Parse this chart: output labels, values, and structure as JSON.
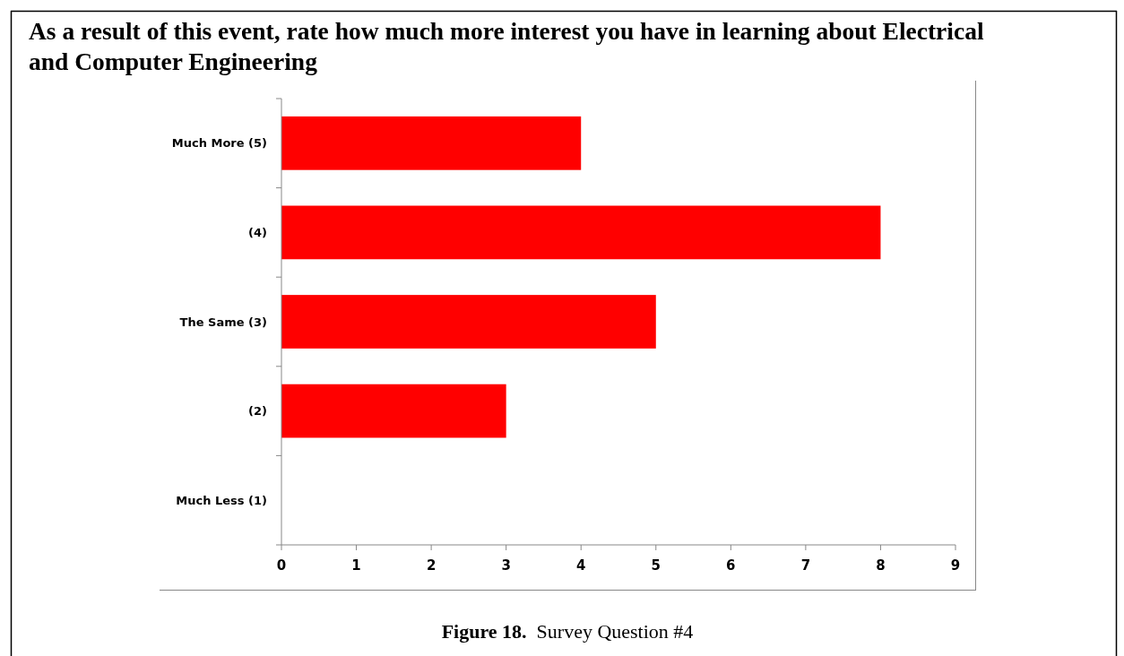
{
  "chart_data": {
    "type": "bar",
    "orientation": "horizontal",
    "title": "As a result of this event, rate how much more interest you have in learning about Electrical and Computer Engineering",
    "categories": [
      "Much More (5)",
      "(4)",
      "The Same (3)",
      "(2)",
      "Much Less (1)"
    ],
    "values": [
      4,
      8,
      5,
      3,
      0
    ],
    "color": "#ff0000",
    "xlim": [
      0,
      9
    ],
    "xticks": [
      0,
      1,
      2,
      3,
      4,
      5,
      6,
      7,
      8,
      9
    ],
    "annotations": [
      "Figure 18.  Survey Question #4"
    ]
  }
}
